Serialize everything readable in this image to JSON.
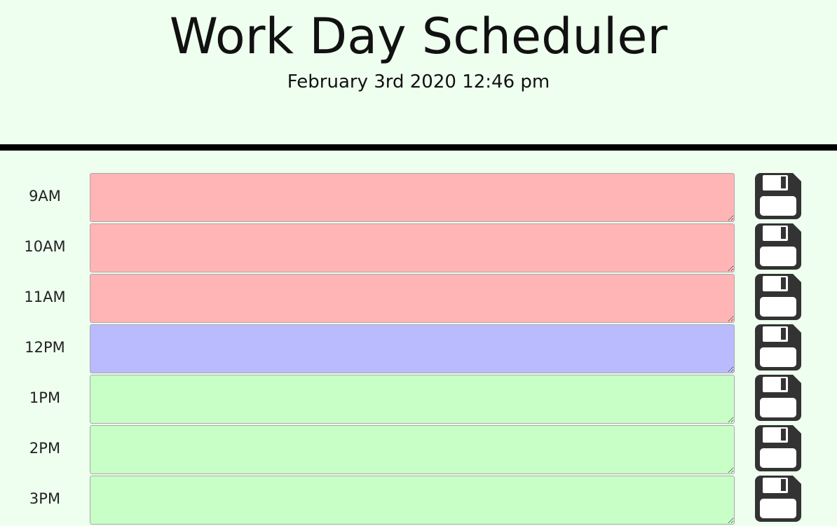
{
  "header": {
    "title": "Work Day Scheduler",
    "datetime": "February 3rd 2020 12:46 pm"
  },
  "colors": {
    "background": "#efffef",
    "past": "#ffb5b5",
    "present": "#babaff",
    "future": "#c7ffc7",
    "save_icon": "#333333"
  },
  "schedule": {
    "rows": [
      {
        "hour": "9AM",
        "status": "past",
        "text": "",
        "save_icon": "floppy-disk-icon"
      },
      {
        "hour": "10AM",
        "status": "past",
        "text": "",
        "save_icon": "floppy-disk-icon"
      },
      {
        "hour": "11AM",
        "status": "past",
        "text": "",
        "save_icon": "floppy-disk-icon"
      },
      {
        "hour": "12PM",
        "status": "present",
        "text": "",
        "save_icon": "floppy-disk-icon"
      },
      {
        "hour": "1PM",
        "status": "future",
        "text": "",
        "save_icon": "floppy-disk-icon"
      },
      {
        "hour": "2PM",
        "status": "future",
        "text": "",
        "save_icon": "floppy-disk-icon"
      },
      {
        "hour": "3PM",
        "status": "future",
        "text": "",
        "save_icon": "floppy-disk-icon"
      }
    ]
  }
}
